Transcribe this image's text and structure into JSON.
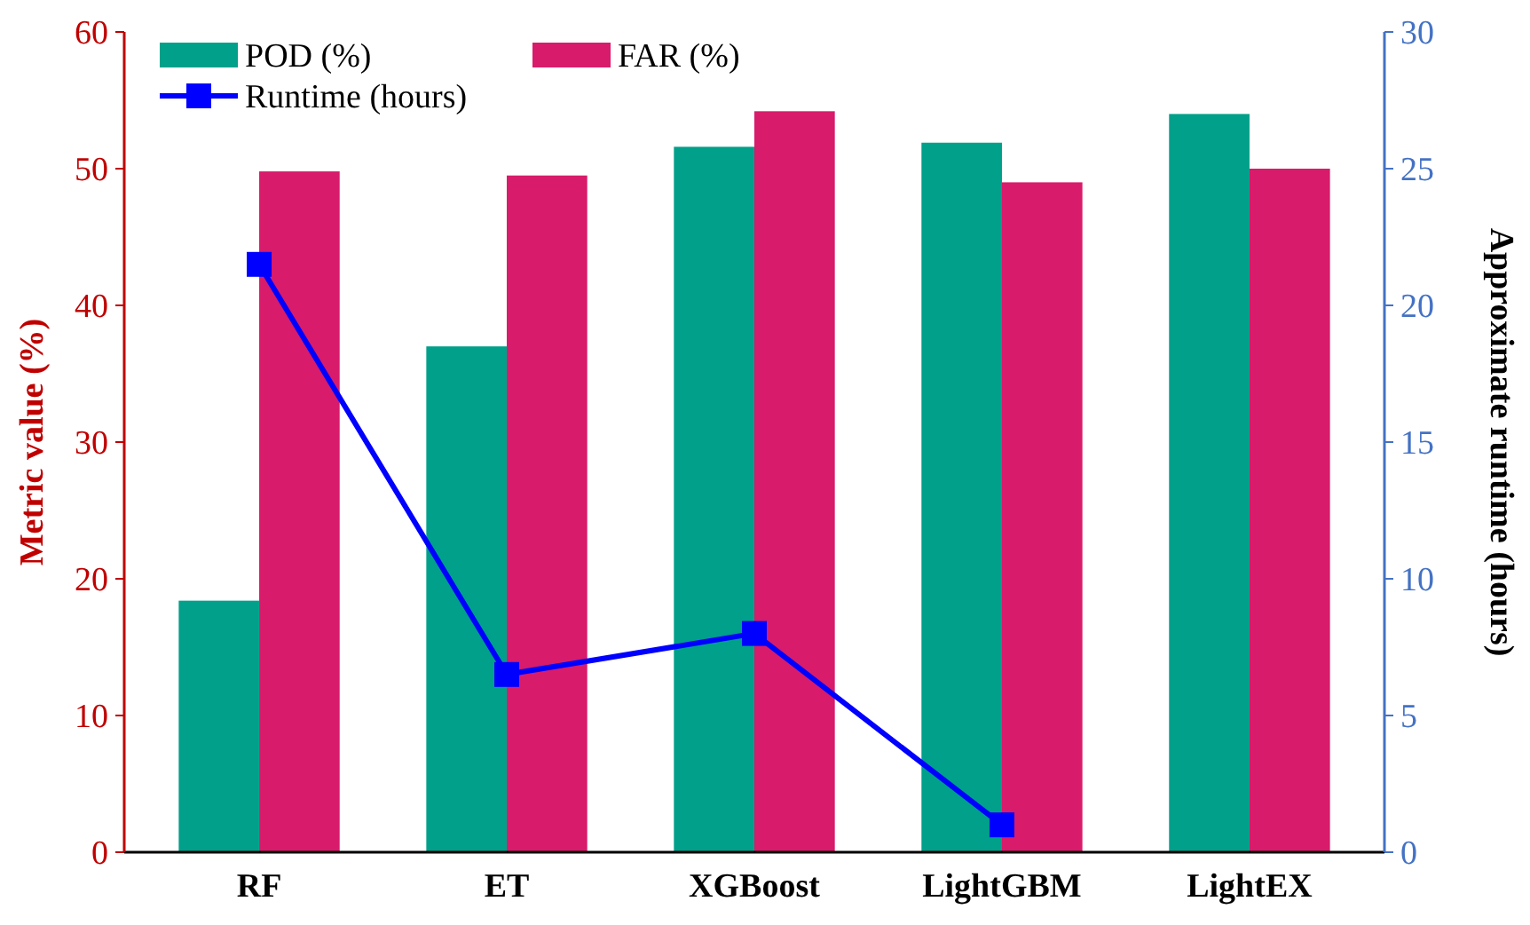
{
  "chart_data": {
    "type": "bar",
    "xlabel": null,
    "ylabel": "Metric value (%)",
    "y2label": "Approximate runtime (hours)",
    "categories": [
      "RF",
      "ET",
      "XGBoost",
      "LightGBM",
      "LightEX"
    ],
    "series": [
      {
        "name": "POD (%)",
        "color": "#00a08a",
        "values": [
          18.4,
          37.0,
          51.6,
          51.9,
          54.0
        ]
      },
      {
        "name": "FAR (%)",
        "color": "#d81b6a",
        "values": [
          49.8,
          49.5,
          54.2,
          49.0,
          50.0
        ]
      },
      {
        "name": "Runtime (hours)",
        "type": "line",
        "axis": "y2",
        "color": "#0000ff",
        "values": [
          21.5,
          6.5,
          8.0,
          1.0,
          null
        ]
      }
    ],
    "ylim": [
      0,
      60
    ],
    "yticks": [
      0,
      10,
      20,
      30,
      40,
      50,
      60
    ],
    "y2lim": [
      0,
      30
    ],
    "y2ticks": [
      0,
      5,
      10,
      15,
      20,
      25,
      30
    ],
    "legend": "top",
    "marker": "square",
    "line_style": "solid"
  }
}
